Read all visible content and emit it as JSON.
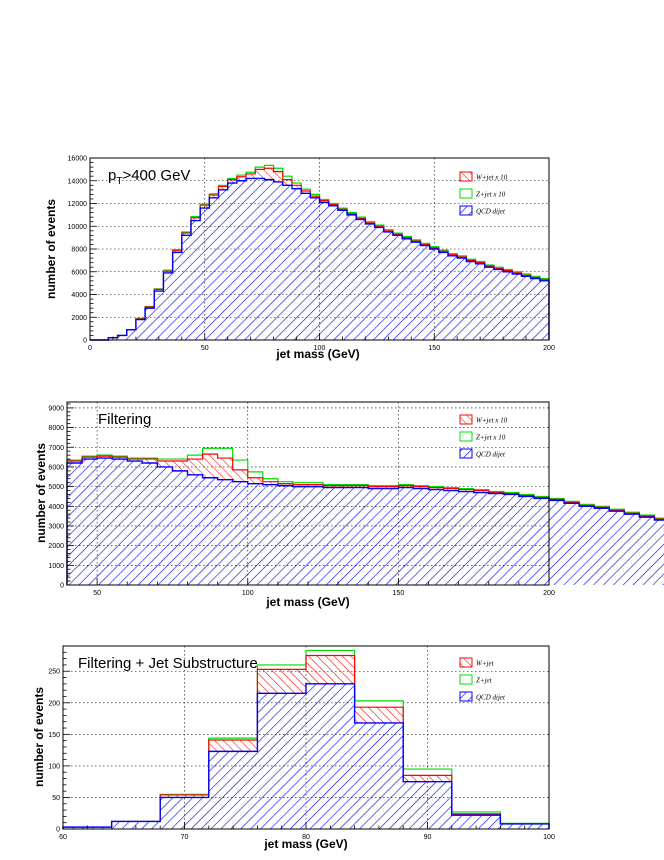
{
  "colors": {
    "w": "#ff0000",
    "z": "#00dd00",
    "qcd": "#0000ff"
  },
  "chart_data": [
    {
      "type": "bar",
      "stacked": true,
      "title": "p_T>400 GeV",
      "title_main": "p",
      "title_sub": "T",
      "title_rest": ">400 GeV",
      "xlabel": "jet mass (GeV)",
      "ylabel": "number of events",
      "xlim": [
        0,
        200
      ],
      "ylim": [
        0,
        16000
      ],
      "bin_width": 4,
      "xticks": [
        0,
        50,
        100,
        150,
        200
      ],
      "yticks": [
        0,
        2000,
        4000,
        6000,
        8000,
        10000,
        12000,
        14000,
        16000
      ],
      "grid_x": [
        50,
        100,
        150
      ],
      "grid_y": [
        2000,
        4000,
        6000,
        8000,
        10000,
        12000,
        14000
      ],
      "legend_position": "top-right",
      "legend": [
        "W+jet x 10",
        "Z+jet x 10",
        "QCD dijet"
      ],
      "series": [
        {
          "name": "QCD dijet",
          "values": [
            0,
            0,
            200,
            400,
            900,
            1800,
            2800,
            4300,
            5900,
            7700,
            9200,
            10500,
            11600,
            12500,
            13200,
            13800,
            14000,
            14200,
            14200,
            14100,
            13900,
            13600,
            13300,
            12900,
            12500,
            12100,
            11800,
            11400,
            11000,
            10600,
            10200,
            9900,
            9500,
            9200,
            8900,
            8600,
            8300,
            8000,
            7700,
            7400,
            7200,
            6900,
            6700,
            6400,
            6200,
            6000,
            5800,
            5600,
            5400,
            5200
          ]
        },
        {
          "name": "W+jet x 10",
          "values": [
            0,
            0,
            0,
            0,
            0,
            50,
            100,
            150,
            150,
            150,
            200,
            250,
            250,
            250,
            300,
            300,
            350,
            400,
            800,
            1000,
            900,
            500,
            300,
            200,
            150,
            150,
            100,
            100,
            100,
            100,
            100,
            100,
            100,
            100,
            100,
            100,
            100,
            100,
            100,
            100,
            100,
            100,
            100,
            100,
            100,
            100,
            100,
            100,
            100,
            100
          ]
        },
        {
          "name": "Z+jet x 10",
          "values": [
            0,
            0,
            0,
            0,
            0,
            50,
            50,
            50,
            100,
            100,
            100,
            100,
            100,
            100,
            100,
            100,
            150,
            150,
            200,
            250,
            300,
            300,
            200,
            150,
            150,
            100,
            100,
            100,
            100,
            100,
            100,
            100,
            100,
            100,
            100,
            100,
            100,
            100,
            100,
            100,
            100,
            100,
            100,
            100,
            100,
            100,
            100,
            100,
            100,
            100
          ]
        }
      ]
    },
    {
      "type": "bar",
      "stacked": true,
      "title": "Filtering",
      "xlabel": "jet mass (GeV)",
      "ylabel": "number of events",
      "xlim": [
        40,
        200
      ],
      "ylim": [
        0,
        9300
      ],
      "bin_width": 5,
      "xticks": [
        50,
        100,
        150,
        200
      ],
      "yticks": [
        0,
        1000,
        2000,
        3000,
        4000,
        5000,
        6000,
        7000,
        8000,
        9000
      ],
      "grid_x": [
        50,
        100,
        150
      ],
      "grid_y": [
        1000,
        2000,
        3000,
        4000,
        5000,
        6000,
        7000,
        8000,
        9000
      ],
      "legend_position": "top-right",
      "legend": [
        "W+jet x 10",
        "Z+jet x 10",
        "QCD dijet"
      ],
      "series": [
        {
          "name": "QCD dijet",
          "values": [
            6200,
            6400,
            6450,
            6400,
            6300,
            6200,
            6000,
            5800,
            5600,
            5450,
            5350,
            5250,
            5150,
            5100,
            5050,
            5000,
            5000,
            4950,
            4950,
            4950,
            4900,
            4900,
            4950,
            4900,
            4850,
            4800,
            4750,
            4700,
            4650,
            4600,
            4500,
            4400,
            4300,
            4150,
            4000,
            3900,
            3750,
            3600,
            3450,
            3300
          ]
        },
        {
          "name": "W+jet x 10",
          "values": [
            100,
            100,
            100,
            100,
            100,
            200,
            300,
            500,
            800,
            1200,
            1100,
            600,
            300,
            150,
            100,
            100,
            100,
            100,
            100,
            100,
            100,
            100,
            100,
            100,
            100,
            100,
            100,
            100,
            50,
            50,
            50,
            50,
            50,
            50,
            50,
            50,
            50,
            50,
            50,
            50
          ]
        },
        {
          "name": "Z+jet x 10",
          "values": [
            50,
            50,
            50,
            50,
            50,
            50,
            100,
            100,
            200,
            300,
            500,
            500,
            300,
            150,
            100,
            100,
            100,
            50,
            50,
            50,
            50,
            50,
            50,
            50,
            50,
            50,
            50,
            50,
            50,
            50,
            50,
            50,
            50,
            50,
            50,
            50,
            50,
            50,
            50,
            50
          ]
        }
      ]
    },
    {
      "type": "bar",
      "stacked": true,
      "title": "Filtering + Jet Substructure",
      "xlabel": "jet mass (GeV)",
      "ylabel": "number of events",
      "xlim": [
        60,
        100
      ],
      "ylim": [
        0,
        290
      ],
      "bin_width": 4,
      "xticks": [
        60,
        70,
        80,
        90,
        100
      ],
      "yticks": [
        0,
        50,
        100,
        150,
        200,
        250
      ],
      "grid_x": [
        70,
        80,
        90
      ],
      "grid_y": [
        50,
        100,
        150,
        200,
        250
      ],
      "legend_position": "top-right",
      "legend": [
        "W+jet",
        "Z+jet",
        "QCD dijet"
      ],
      "series": [
        {
          "name": "QCD dijet",
          "values": [
            3,
            12,
            50,
            123,
            215,
            230,
            168,
            75,
            22,
            8
          ]
        },
        {
          "name": "W+jet",
          "values": [
            0,
            0,
            4,
            18,
            38,
            45,
            25,
            10,
            2,
            0
          ]
        },
        {
          "name": "Z+jet",
          "values": [
            0,
            0,
            1,
            3,
            7,
            8,
            10,
            10,
            3,
            1
          ]
        }
      ]
    }
  ]
}
